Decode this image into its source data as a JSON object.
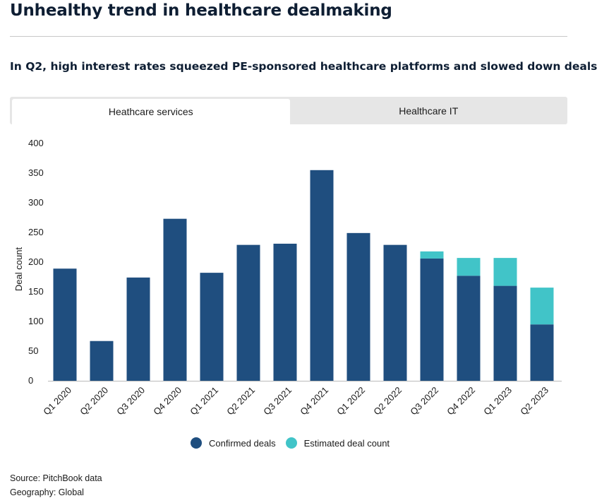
{
  "title": "Unhealthy trend in healthcare dealmaking",
  "subtitle": "In Q2, high interest rates squeezed PE-sponsored healthcare platforms and slowed down deals",
  "tabs": [
    {
      "label": "Heathcare services",
      "active": true
    },
    {
      "label": "Healthcare IT",
      "active": false
    }
  ],
  "colors": {
    "confirmed": "#1f4e7f",
    "estimated": "#41c4c8"
  },
  "footer": {
    "source": "Source: PitchBook data",
    "geography": "Geography: Global"
  },
  "chart_data": {
    "type": "bar",
    "stacked": true,
    "title": "",
    "xlabel": "",
    "ylabel": "Deal count",
    "ylim": [
      0,
      400
    ],
    "yticks": [
      0,
      50,
      100,
      150,
      200,
      250,
      300,
      350,
      400
    ],
    "grid": false,
    "legend_position": "bottom",
    "categories": [
      "Q1 2020",
      "Q2 2020",
      "Q3 2020",
      "Q4 2020",
      "Q1 2021",
      "Q2 2021",
      "Q3 2021",
      "Q4 2021",
      "Q1 2022",
      "Q2 2022",
      "Q3 2022",
      "Q4 2022",
      "Q1 2023",
      "Q2 2023"
    ],
    "series": [
      {
        "name": "Confirmed deals",
        "values": [
          189,
          67,
          174,
          273,
          182,
          229,
          231,
          355,
          249,
          229,
          206,
          177,
          160,
          95
        ]
      },
      {
        "name": "Estimated deal count",
        "values": [
          0,
          0,
          0,
          0,
          0,
          0,
          0,
          0,
          0,
          0,
          12,
          30,
          47,
          62
        ]
      }
    ]
  }
}
